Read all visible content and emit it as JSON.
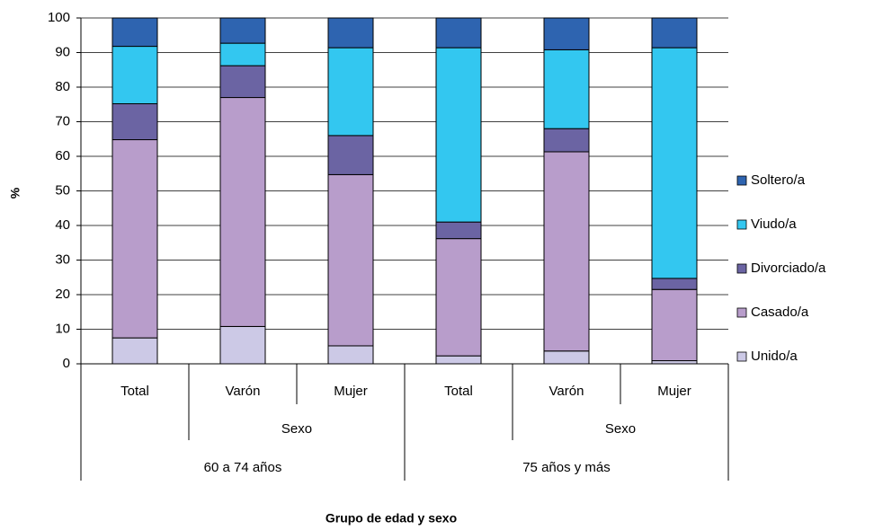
{
  "chart_data": {
    "type": "stacked_bar",
    "x_label": "Grupo de edad y sexo",
    "y_label": "%",
    "groups": [
      {
        "name": "60 a 74 años",
        "subgroups": [
          {
            "name": null,
            "categories": [
              "Total"
            ]
          },
          {
            "name": "Sexo",
            "categories": [
              "Varón",
              "Mujer"
            ]
          }
        ]
      },
      {
        "name": "75 años y más",
        "subgroups": [
          {
            "name": null,
            "categories": [
              "Total"
            ]
          },
          {
            "name": "Sexo",
            "categories": [
              "Varón",
              "Mujer"
            ]
          }
        ]
      }
    ],
    "series": [
      {
        "name": "Unido/a",
        "color": "#ccc9e6",
        "values": [
          7.5,
          10.8,
          5.2,
          2.3,
          3.7,
          0.9
        ]
      },
      {
        "name": "Casado/a",
        "color": "#b89dcb",
        "values": [
          57.3,
          66.2,
          49.5,
          33.9,
          57.6,
          20.6
        ]
      },
      {
        "name": "Divorciado/a",
        "color": "#6b64a3",
        "values": [
          10.4,
          9.2,
          11.3,
          4.8,
          6.7,
          3.2
        ]
      },
      {
        "name": "Viudo/a",
        "color": "#33c7f0",
        "values": [
          16.6,
          6.5,
          25.4,
          50.4,
          22.8,
          66.7
        ]
      },
      {
        "name": "Soltero/a",
        "color": "#2e64b0",
        "values": [
          8.2,
          7.3,
          8.6,
          8.6,
          9.2,
          8.6
        ]
      }
    ],
    "ylim": [
      0,
      100
    ],
    "yticks": [
      0,
      10,
      20,
      30,
      40,
      50,
      60,
      70,
      80,
      90,
      100
    ],
    "grid": true,
    "legend": "right"
  }
}
